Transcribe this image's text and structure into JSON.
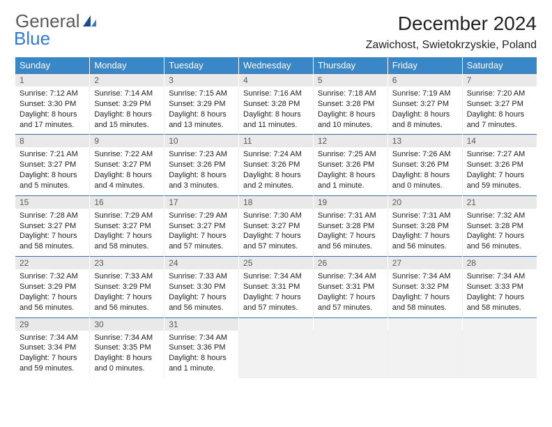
{
  "logo": {
    "text1": "General",
    "text2": "Blue"
  },
  "header": {
    "title": "December 2024",
    "location": "Zawichost, Swietokrzyskie, Poland"
  },
  "dayHeaders": [
    "Sunday",
    "Monday",
    "Tuesday",
    "Wednesday",
    "Thursday",
    "Friday",
    "Saturday"
  ],
  "colors": {
    "headerBg": "#3a87c8",
    "headerText": "#ffffff",
    "dayNumBg": "#e9e9e9",
    "borderAccent": "#3a6ea5"
  },
  "weeks": [
    [
      {
        "num": "1",
        "sunrise": "Sunrise: 7:12 AM",
        "sunset": "Sunset: 3:30 PM",
        "day1": "Daylight: 8 hours",
        "day2": "and 17 minutes."
      },
      {
        "num": "2",
        "sunrise": "Sunrise: 7:14 AM",
        "sunset": "Sunset: 3:29 PM",
        "day1": "Daylight: 8 hours",
        "day2": "and 15 minutes."
      },
      {
        "num": "3",
        "sunrise": "Sunrise: 7:15 AM",
        "sunset": "Sunset: 3:29 PM",
        "day1": "Daylight: 8 hours",
        "day2": "and 13 minutes."
      },
      {
        "num": "4",
        "sunrise": "Sunrise: 7:16 AM",
        "sunset": "Sunset: 3:28 PM",
        "day1": "Daylight: 8 hours",
        "day2": "and 11 minutes."
      },
      {
        "num": "5",
        "sunrise": "Sunrise: 7:18 AM",
        "sunset": "Sunset: 3:28 PM",
        "day1": "Daylight: 8 hours",
        "day2": "and 10 minutes."
      },
      {
        "num": "6",
        "sunrise": "Sunrise: 7:19 AM",
        "sunset": "Sunset: 3:27 PM",
        "day1": "Daylight: 8 hours",
        "day2": "and 8 minutes."
      },
      {
        "num": "7",
        "sunrise": "Sunrise: 7:20 AM",
        "sunset": "Sunset: 3:27 PM",
        "day1": "Daylight: 8 hours",
        "day2": "and 7 minutes."
      }
    ],
    [
      {
        "num": "8",
        "sunrise": "Sunrise: 7:21 AM",
        "sunset": "Sunset: 3:27 PM",
        "day1": "Daylight: 8 hours",
        "day2": "and 5 minutes."
      },
      {
        "num": "9",
        "sunrise": "Sunrise: 7:22 AM",
        "sunset": "Sunset: 3:27 PM",
        "day1": "Daylight: 8 hours",
        "day2": "and 4 minutes."
      },
      {
        "num": "10",
        "sunrise": "Sunrise: 7:23 AM",
        "sunset": "Sunset: 3:26 PM",
        "day1": "Daylight: 8 hours",
        "day2": "and 3 minutes."
      },
      {
        "num": "11",
        "sunrise": "Sunrise: 7:24 AM",
        "sunset": "Sunset: 3:26 PM",
        "day1": "Daylight: 8 hours",
        "day2": "and 2 minutes."
      },
      {
        "num": "12",
        "sunrise": "Sunrise: 7:25 AM",
        "sunset": "Sunset: 3:26 PM",
        "day1": "Daylight: 8 hours",
        "day2": "and 1 minute."
      },
      {
        "num": "13",
        "sunrise": "Sunrise: 7:26 AM",
        "sunset": "Sunset: 3:26 PM",
        "day1": "Daylight: 8 hours",
        "day2": "and 0 minutes."
      },
      {
        "num": "14",
        "sunrise": "Sunrise: 7:27 AM",
        "sunset": "Sunset: 3:26 PM",
        "day1": "Daylight: 7 hours",
        "day2": "and 59 minutes."
      }
    ],
    [
      {
        "num": "15",
        "sunrise": "Sunrise: 7:28 AM",
        "sunset": "Sunset: 3:27 PM",
        "day1": "Daylight: 7 hours",
        "day2": "and 58 minutes."
      },
      {
        "num": "16",
        "sunrise": "Sunrise: 7:29 AM",
        "sunset": "Sunset: 3:27 PM",
        "day1": "Daylight: 7 hours",
        "day2": "and 58 minutes."
      },
      {
        "num": "17",
        "sunrise": "Sunrise: 7:29 AM",
        "sunset": "Sunset: 3:27 PM",
        "day1": "Daylight: 7 hours",
        "day2": "and 57 minutes."
      },
      {
        "num": "18",
        "sunrise": "Sunrise: 7:30 AM",
        "sunset": "Sunset: 3:27 PM",
        "day1": "Daylight: 7 hours",
        "day2": "and 57 minutes."
      },
      {
        "num": "19",
        "sunrise": "Sunrise: 7:31 AM",
        "sunset": "Sunset: 3:28 PM",
        "day1": "Daylight: 7 hours",
        "day2": "and 56 minutes."
      },
      {
        "num": "20",
        "sunrise": "Sunrise: 7:31 AM",
        "sunset": "Sunset: 3:28 PM",
        "day1": "Daylight: 7 hours",
        "day2": "and 56 minutes."
      },
      {
        "num": "21",
        "sunrise": "Sunrise: 7:32 AM",
        "sunset": "Sunset: 3:28 PM",
        "day1": "Daylight: 7 hours",
        "day2": "and 56 minutes."
      }
    ],
    [
      {
        "num": "22",
        "sunrise": "Sunrise: 7:32 AM",
        "sunset": "Sunset: 3:29 PM",
        "day1": "Daylight: 7 hours",
        "day2": "and 56 minutes."
      },
      {
        "num": "23",
        "sunrise": "Sunrise: 7:33 AM",
        "sunset": "Sunset: 3:29 PM",
        "day1": "Daylight: 7 hours",
        "day2": "and 56 minutes."
      },
      {
        "num": "24",
        "sunrise": "Sunrise: 7:33 AM",
        "sunset": "Sunset: 3:30 PM",
        "day1": "Daylight: 7 hours",
        "day2": "and 56 minutes."
      },
      {
        "num": "25",
        "sunrise": "Sunrise: 7:34 AM",
        "sunset": "Sunset: 3:31 PM",
        "day1": "Daylight: 7 hours",
        "day2": "and 57 minutes."
      },
      {
        "num": "26",
        "sunrise": "Sunrise: 7:34 AM",
        "sunset": "Sunset: 3:31 PM",
        "day1": "Daylight: 7 hours",
        "day2": "and 57 minutes."
      },
      {
        "num": "27",
        "sunrise": "Sunrise: 7:34 AM",
        "sunset": "Sunset: 3:32 PM",
        "day1": "Daylight: 7 hours",
        "day2": "and 58 minutes."
      },
      {
        "num": "28",
        "sunrise": "Sunrise: 7:34 AM",
        "sunset": "Sunset: 3:33 PM",
        "day1": "Daylight: 7 hours",
        "day2": "and 58 minutes."
      }
    ],
    [
      {
        "num": "29",
        "sunrise": "Sunrise: 7:34 AM",
        "sunset": "Sunset: 3:34 PM",
        "day1": "Daylight: 7 hours",
        "day2": "and 59 minutes."
      },
      {
        "num": "30",
        "sunrise": "Sunrise: 7:34 AM",
        "sunset": "Sunset: 3:35 PM",
        "day1": "Daylight: 8 hours",
        "day2": "and 0 minutes."
      },
      {
        "num": "31",
        "sunrise": "Sunrise: 7:34 AM",
        "sunset": "Sunset: 3:36 PM",
        "day1": "Daylight: 8 hours",
        "day2": "and 1 minute."
      },
      null,
      null,
      null,
      null
    ]
  ]
}
